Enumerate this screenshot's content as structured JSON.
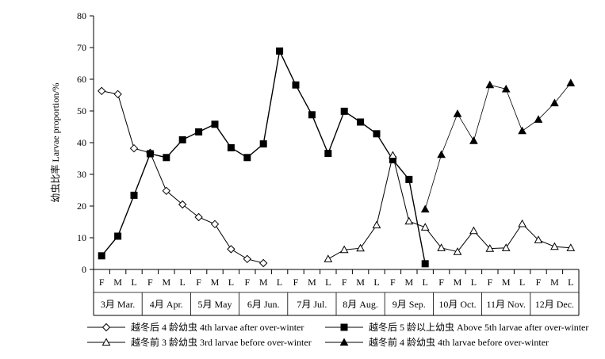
{
  "chart_data": {
    "type": "line",
    "ylabel": "幼虫比率 Larvae proportion/%",
    "ylim": [
      0,
      80
    ],
    "yticks": [
      0,
      10,
      20,
      30,
      40,
      50,
      60,
      70,
      80
    ],
    "grid": false,
    "legend_position": "bottom",
    "period_labels": [
      "F",
      "M",
      "L"
    ],
    "months": [
      "3月 Mar.",
      "4月 Apr.",
      "5月 May",
      "6月 Jun.",
      "7月 Jul.",
      "8月 Aug.",
      "9月 Sep.",
      "10月 Oct.",
      "11月 Nov.",
      "12月 Dec."
    ],
    "series": [
      {
        "name": "越冬后 4 龄幼虫  4th  larvae after over-winter",
        "marker": "diamond-open",
        "line_width": 1,
        "points": [
          [
            0,
            56.3
          ],
          [
            1,
            55.3
          ],
          [
            2,
            38.2
          ],
          [
            3,
            36.8
          ],
          [
            4,
            24.8
          ],
          [
            5,
            20.5
          ],
          [
            6,
            16.5
          ],
          [
            7,
            14.3
          ],
          [
            8,
            6.4
          ],
          [
            9,
            3.3
          ],
          [
            10,
            2.0
          ]
        ]
      },
      {
        "name": "越冬后 5 龄以上幼虫  Above 5th larvae after over-winter",
        "marker": "square-filled",
        "line_width": 1.4,
        "points": [
          [
            0,
            4.3
          ],
          [
            1,
            10.5
          ],
          [
            2,
            23.4
          ],
          [
            3,
            36.5
          ],
          [
            4,
            35.3
          ],
          [
            5,
            40.9
          ],
          [
            6,
            43.4
          ],
          [
            7,
            45.8
          ],
          [
            8,
            38.4
          ],
          [
            9,
            35.3
          ],
          [
            10,
            39.6
          ],
          [
            11,
            68.9
          ],
          [
            12,
            58.2
          ],
          [
            13,
            48.8
          ],
          [
            14,
            36.6
          ],
          [
            15,
            49.9
          ],
          [
            16,
            46.5
          ],
          [
            17,
            42.8
          ],
          [
            18,
            34.6
          ],
          [
            19,
            28.4
          ],
          [
            20,
            1.8
          ]
        ]
      },
      {
        "name": "越冬前 3 龄幼虫  3rd  larvae before over-winter",
        "marker": "triangle-open",
        "line_width": 1,
        "points": [
          [
            14,
            3.3
          ],
          [
            15,
            6.2
          ],
          [
            16,
            6.7
          ],
          [
            17,
            14.0
          ],
          [
            18,
            36.0
          ],
          [
            19,
            15.2
          ],
          [
            20,
            13.3
          ],
          [
            21,
            6.8
          ],
          [
            22,
            5.6
          ],
          [
            23,
            12.2
          ],
          [
            24,
            6.6
          ],
          [
            25,
            6.8
          ],
          [
            26,
            14.4
          ],
          [
            27,
            9.3
          ],
          [
            28,
            7.2
          ],
          [
            29,
            6.8
          ]
        ]
      },
      {
        "name": "越冬前 4 龄幼虫  4th larvae before over-winter",
        "marker": "triangle-filled",
        "line_width": 0.8,
        "points": [
          [
            20,
            19.0
          ],
          [
            21,
            36.2
          ],
          [
            22,
            49.1
          ],
          [
            23,
            40.6
          ],
          [
            24,
            58.2
          ],
          [
            25,
            56.9
          ],
          [
            26,
            43.7
          ],
          [
            27,
            47.3
          ],
          [
            28,
            52.5
          ],
          [
            29,
            58.8
          ]
        ]
      }
    ]
  }
}
